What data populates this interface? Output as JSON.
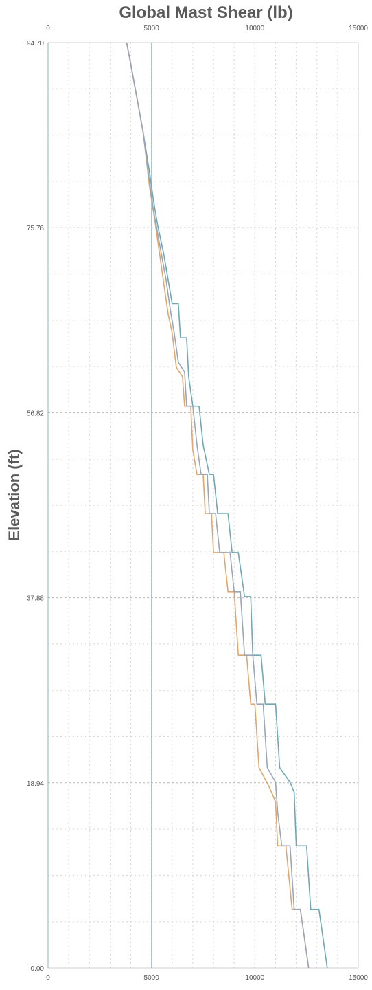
{
  "chart_data": {
    "type": "line",
    "title": "Global Mast Shear (lb)",
    "xlabel": "",
    "ylabel": "Elevation (ft)",
    "xlim": [
      0,
      15000
    ],
    "ylim": [
      0.0,
      94.7
    ],
    "x_ticks": [
      "0",
      "5000",
      "10000",
      "15000"
    ],
    "y_ticks": [
      "0.00",
      "18.94",
      "37.88",
      "56.82",
      "75.76",
      "94.70"
    ],
    "grid": true,
    "legend": "none",
    "series": [
      {
        "color": "#6fa8b5",
        "points": [
          [
            3800,
            94.7
          ],
          [
            4000,
            92.5
          ],
          [
            4300,
            89.0
          ],
          [
            4600,
            85.5
          ],
          [
            4900,
            81.5
          ],
          [
            5100,
            78.5
          ],
          [
            5300,
            76.0
          ],
          [
            5600,
            73.0
          ],
          [
            5800,
            70.5
          ],
          [
            6000,
            68.0
          ],
          [
            6300,
            68.0
          ],
          [
            6400,
            64.5
          ],
          [
            6700,
            64.5
          ],
          [
            6800,
            60.5
          ],
          [
            7000,
            57.5
          ],
          [
            7300,
            57.5
          ],
          [
            7500,
            53.5
          ],
          [
            7800,
            50.5
          ],
          [
            8000,
            50.5
          ],
          [
            8200,
            46.5
          ],
          [
            8700,
            46.5
          ],
          [
            8900,
            42.5
          ],
          [
            9200,
            42.5
          ],
          [
            9500,
            38.0
          ],
          [
            9800,
            38.0
          ],
          [
            9900,
            32.0
          ],
          [
            10300,
            32.0
          ],
          [
            10500,
            27.0
          ],
          [
            11000,
            27.0
          ],
          [
            11200,
            20.5
          ],
          [
            11700,
            19.0
          ],
          [
            11900,
            18.0
          ],
          [
            12000,
            12.5
          ],
          [
            12500,
            12.5
          ],
          [
            12700,
            6.0
          ],
          [
            13100,
            6.0
          ],
          [
            13300,
            3.0
          ],
          [
            13500,
            0.0
          ]
        ]
      },
      {
        "color": "#e2a66a",
        "points": [
          [
            3800,
            94.7
          ],
          [
            4000,
            92.5
          ],
          [
            4300,
            89.0
          ],
          [
            4600,
            85.5
          ],
          [
            4900,
            80.0
          ],
          [
            5200,
            76.0
          ],
          [
            5400,
            73.0
          ],
          [
            5600,
            70.0
          ],
          [
            5800,
            67.0
          ],
          [
            6000,
            65.0
          ],
          [
            6200,
            61.5
          ],
          [
            6500,
            60.5
          ],
          [
            6600,
            57.5
          ],
          [
            6900,
            57.5
          ],
          [
            7000,
            53.0
          ],
          [
            7200,
            50.5
          ],
          [
            7500,
            50.5
          ],
          [
            7600,
            46.5
          ],
          [
            7900,
            46.5
          ],
          [
            8000,
            42.5
          ],
          [
            8500,
            42.5
          ],
          [
            8700,
            38.5
          ],
          [
            9000,
            38.5
          ],
          [
            9200,
            32.0
          ],
          [
            9600,
            32.0
          ],
          [
            9800,
            27.0
          ],
          [
            10000,
            27.0
          ],
          [
            10200,
            20.5
          ],
          [
            10700,
            18.5
          ],
          [
            11000,
            17.0
          ],
          [
            11100,
            12.5
          ],
          [
            11500,
            12.5
          ],
          [
            11800,
            6.0
          ],
          [
            12200,
            6.0
          ],
          [
            12400,
            3.0
          ],
          [
            12600,
            0.0
          ]
        ]
      },
      {
        "color": "#9aa6b8",
        "points": [
          [
            3800,
            94.7
          ],
          [
            4000,
            92.5
          ],
          [
            4300,
            89.0
          ],
          [
            4600,
            85.5
          ],
          [
            4900,
            80.5
          ],
          [
            5100,
            77.5
          ],
          [
            5400,
            74.0
          ],
          [
            5700,
            70.5
          ],
          [
            5900,
            67.5
          ],
          [
            6100,
            65.0
          ],
          [
            6300,
            62.0
          ],
          [
            6600,
            61.0
          ],
          [
            6700,
            57.5
          ],
          [
            7000,
            57.5
          ],
          [
            7200,
            53.5
          ],
          [
            7400,
            50.5
          ],
          [
            7700,
            50.5
          ],
          [
            7800,
            46.5
          ],
          [
            8100,
            46.5
          ],
          [
            8300,
            42.5
          ],
          [
            8800,
            42.5
          ],
          [
            9000,
            38.5
          ],
          [
            9300,
            38.5
          ],
          [
            9500,
            32.0
          ],
          [
            9900,
            32.0
          ],
          [
            10100,
            27.0
          ],
          [
            10400,
            27.0
          ],
          [
            10600,
            20.5
          ],
          [
            11000,
            19.0
          ],
          [
            11100,
            16.0
          ],
          [
            11300,
            12.5
          ],
          [
            11700,
            12.5
          ],
          [
            11900,
            6.0
          ],
          [
            12200,
            6.0
          ],
          [
            12400,
            3.0
          ],
          [
            12600,
            0.0
          ]
        ]
      }
    ]
  }
}
